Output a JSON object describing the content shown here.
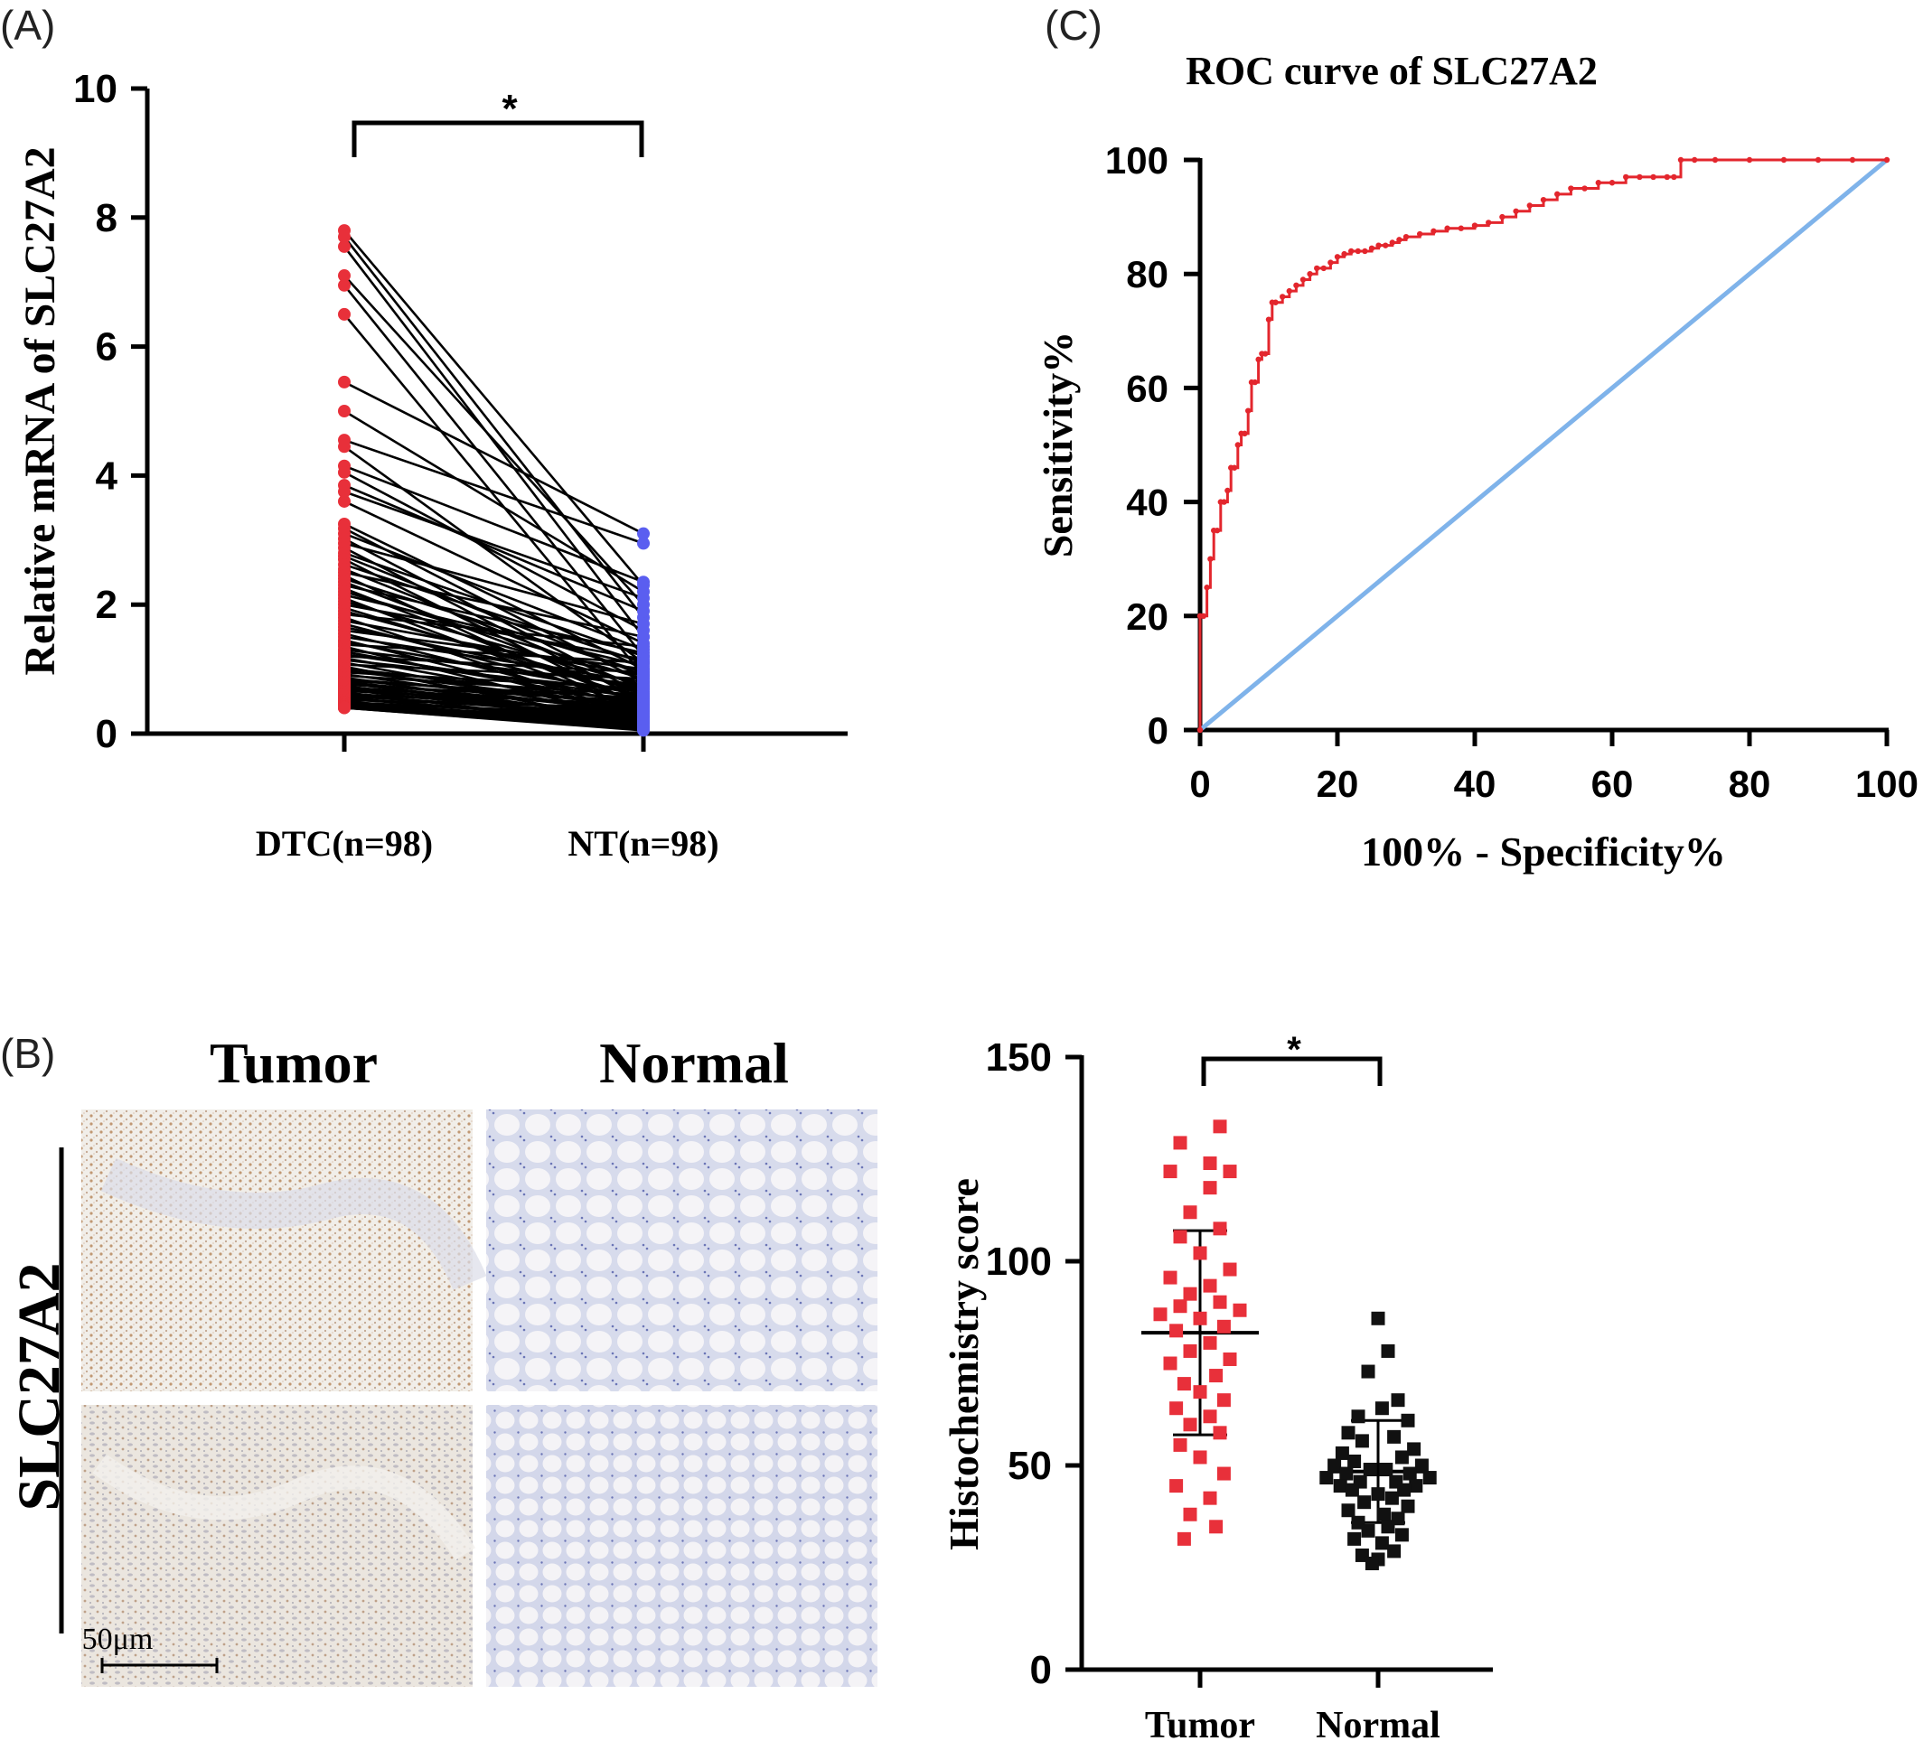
{
  "panels": {
    "a": {
      "letter": "(A)"
    },
    "b": {
      "letter": "(B)"
    },
    "c": {
      "letter": "(C)"
    }
  },
  "histology": {
    "col_labels": [
      "Tumor",
      "Normal"
    ],
    "row_label": "SLC27A2",
    "scale_bar": "50μm"
  },
  "colors": {
    "tumor_red": "#e8303a",
    "normal_blue": "#5a5ef0",
    "roc_red": "#e3262d",
    "diagonal_blue": "#7fb3ea",
    "normal_black": "#111111"
  },
  "chart_data": [
    {
      "id": "paired",
      "type": "scatter",
      "ylabel": "Relative mRNA of SLC27A2",
      "ylim": [
        0,
        10
      ],
      "yticks": [
        "0",
        "2",
        "4",
        "6",
        "8",
        "10"
      ],
      "categories": [
        "DTC(n=98)",
        "NT(n=98)"
      ],
      "significance": "*",
      "series": [
        {
          "name": "DTC(n=98)",
          "values": [
            7.8,
            7.7,
            7.55,
            7.1,
            6.95,
            6.5,
            5.45,
            5.0,
            4.55,
            4.45,
            4.15,
            4.05,
            3.85,
            3.75,
            3.6,
            3.25,
            3.18,
            3.1,
            3.02,
            2.95,
            2.88,
            2.8,
            2.75,
            2.7,
            2.62,
            2.55,
            2.5,
            2.45,
            2.4,
            2.35,
            2.3,
            2.25,
            2.2,
            2.15,
            2.1,
            2.05,
            2.0,
            1.95,
            1.9,
            1.85,
            1.8,
            1.75,
            1.7,
            1.65,
            1.6,
            1.55,
            1.5,
            1.45,
            1.42,
            1.38,
            1.35,
            1.3,
            1.27,
            1.23,
            1.2,
            1.17,
            1.14,
            1.1,
            1.07,
            1.04,
            1.01,
            0.98,
            0.95,
            0.92,
            0.9,
            0.87,
            0.85,
            0.82,
            0.8,
            0.78,
            0.76,
            0.74,
            0.72,
            0.7,
            0.68,
            0.66,
            0.64,
            0.62,
            0.6,
            0.58,
            0.56,
            0.54,
            0.52,
            0.5,
            0.49,
            0.48,
            0.47,
            0.46,
            0.45,
            0.44,
            0.43,
            0.42,
            0.42,
            0.41,
            0.41,
            0.4,
            0.4,
            0.4
          ]
        },
        {
          "name": "NT(n=98)",
          "values": [
            2.3,
            1.8,
            1.5,
            2.0,
            1.2,
            0.9,
            3.1,
            2.2,
            2.95,
            1.1,
            2.35,
            1.6,
            1.9,
            2.1,
            1.4,
            1.0,
            0.8,
            1.3,
            0.6,
            1.7,
            0.5,
            1.2,
            0.9,
            0.4,
            1.1,
            0.7,
            1.5,
            0.3,
            0.95,
            0.6,
            1.25,
            0.45,
            0.85,
            1.05,
            0.35,
            0.75,
            1.15,
            0.55,
            0.65,
            1.35,
            0.25,
            0.9,
            0.5,
            0.7,
            1.0,
            0.4,
            0.8,
            0.3,
            0.6,
            1.1,
            0.2,
            0.75,
            0.45,
            0.55,
            0.95,
            0.35,
            0.65,
            0.25,
            0.85,
            0.15,
            0.5,
            0.4,
            0.7,
            0.3,
            0.6,
            0.2,
            0.45,
            0.55,
            0.35,
            0.25,
            0.5,
            0.15,
            0.4,
            0.3,
            0.2,
            0.45,
            0.1,
            0.35,
            0.25,
            0.3,
            0.15,
            0.2,
            0.4,
            0.1,
            0.25,
            0.15,
            0.3,
            0.2,
            0.1,
            0.18,
            0.12,
            0.22,
            0.08,
            0.15,
            0.1,
            0.12,
            0.06,
            0.05
          ]
        }
      ]
    },
    {
      "id": "roc",
      "type": "line",
      "title": "ROC curve of SLC27A2",
      "xlabel": "100% - Specificity%",
      "ylabel": "Sensitivity%",
      "xlim": [
        0,
        100
      ],
      "ylim": [
        0,
        100
      ],
      "xticks": [
        "0",
        "20",
        "40",
        "60",
        "80",
        "100"
      ],
      "yticks": [
        "0",
        "20",
        "40",
        "60",
        "80",
        "100"
      ],
      "grid": false,
      "series": [
        {
          "name": "ROC",
          "x": [
            0,
            0,
            0.5,
            1,
            1.5,
            2,
            2.5,
            3,
            3.5,
            4,
            4.5,
            5,
            5.5,
            6,
            6.5,
            7,
            7.5,
            8,
            8.5,
            9,
            9.5,
            10,
            10.5,
            11,
            12,
            13,
            14,
            15,
            16,
            17,
            18,
            19,
            20,
            21,
            22,
            23,
            24,
            25,
            26,
            27,
            28,
            29,
            30,
            32,
            34,
            36,
            38,
            40,
            42,
            44,
            46,
            48,
            50,
            52,
            54,
            56,
            58,
            60,
            62,
            64,
            66,
            68,
            69,
            70,
            72,
            75,
            80,
            85,
            90,
            95,
            100
          ],
          "y": [
            0,
            20,
            20,
            25,
            30,
            35,
            35,
            40,
            40,
            42,
            46,
            46,
            50,
            52,
            52,
            56,
            61,
            61,
            65,
            66,
            66,
            72,
            75,
            75,
            76,
            77,
            78,
            79,
            80,
            81,
            81,
            82,
            83,
            83.5,
            84,
            84,
            84,
            84.5,
            85,
            85,
            85.5,
            86,
            86.5,
            87,
            87.5,
            88,
            88,
            88.5,
            89,
            90,
            91,
            92,
            93,
            94,
            95,
            95,
            96,
            96,
            97,
            97,
            97,
            97,
            97,
            100,
            100,
            100,
            100,
            100,
            100,
            100,
            100
          ]
        },
        {
          "name": "Reference",
          "x": [
            0,
            100
          ],
          "y": [
            0,
            100
          ]
        }
      ]
    },
    {
      "id": "score",
      "type": "scatter",
      "ylabel": "Histochemistry score",
      "ylim": [
        0,
        150
      ],
      "yticks": [
        "0",
        "50",
        "100",
        "150"
      ],
      "categories": [
        "Tumor",
        "Normal"
      ],
      "significance": "*",
      "series": [
        {
          "name": "Tumor",
          "mean": 82.5,
          "sd_low": 57.5,
          "sd_high": 107.5,
          "points": [
            [
              0.1,
              133
            ],
            [
              -0.1,
              129
            ],
            [
              0.05,
              124
            ],
            [
              -0.15,
              122
            ],
            [
              0.15,
              122
            ],
            [
              0.05,
              118
            ],
            [
              -0.05,
              112
            ],
            [
              0.1,
              108
            ],
            [
              -0.1,
              106
            ],
            [
              0.0,
              102
            ],
            [
              0.15,
              98
            ],
            [
              -0.15,
              96
            ],
            [
              0.05,
              94
            ],
            [
              -0.05,
              92
            ],
            [
              0.1,
              90
            ],
            [
              -0.1,
              89
            ],
            [
              0.2,
              88
            ],
            [
              -0.2,
              87
            ],
            [
              0.0,
              86
            ],
            [
              0.12,
              84
            ],
            [
              -0.12,
              83
            ],
            [
              0.05,
              80
            ],
            [
              -0.05,
              78
            ],
            [
              0.15,
              76
            ],
            [
              -0.15,
              75
            ],
            [
              0.08,
              72
            ],
            [
              -0.08,
              70
            ],
            [
              0.0,
              68
            ],
            [
              0.12,
              66
            ],
            [
              -0.12,
              64
            ],
            [
              0.05,
              62
            ],
            [
              -0.05,
              60
            ],
            [
              0.1,
              58
            ],
            [
              -0.1,
              55
            ],
            [
              0.0,
              52
            ],
            [
              0.12,
              48
            ],
            [
              -0.12,
              45
            ],
            [
              0.05,
              42
            ],
            [
              -0.05,
              38
            ],
            [
              0.08,
              35
            ],
            [
              -0.08,
              32
            ]
          ]
        },
        {
          "name": "Normal",
          "mean": 48.5,
          "sd_low": 36,
          "sd_high": 61,
          "points": [
            [
              0.0,
              86
            ],
            [
              0.05,
              78
            ],
            [
              -0.05,
              73
            ],
            [
              0.1,
              66
            ],
            [
              0.02,
              64
            ],
            [
              -0.1,
              62
            ],
            [
              0.15,
              61
            ],
            [
              -0.15,
              58
            ],
            [
              0.08,
              57
            ],
            [
              -0.08,
              56
            ],
            [
              0.18,
              54
            ],
            [
              -0.18,
              53
            ],
            [
              0.12,
              52
            ],
            [
              -0.12,
              51
            ],
            [
              0.22,
              50
            ],
            [
              -0.22,
              50
            ],
            [
              0.04,
              49
            ],
            [
              -0.04,
              49
            ],
            [
              0.16,
              48
            ],
            [
              -0.16,
              48
            ],
            [
              0.26,
              47
            ],
            [
              -0.26,
              47
            ],
            [
              0.09,
              46
            ],
            [
              -0.09,
              46
            ],
            [
              0.19,
              45
            ],
            [
              -0.19,
              45
            ],
            [
              0.13,
              44
            ],
            [
              -0.13,
              44
            ],
            [
              0.0,
              43
            ],
            [
              0.07,
              42
            ],
            [
              -0.07,
              41
            ],
            [
              0.15,
              40
            ],
            [
              -0.15,
              39
            ],
            [
              0.03,
              38
            ],
            [
              0.1,
              37
            ],
            [
              -0.1,
              36
            ],
            [
              0.05,
              35
            ],
            [
              -0.05,
              34
            ],
            [
              0.12,
              33
            ],
            [
              -0.12,
              32
            ],
            [
              0.02,
              31
            ],
            [
              0.08,
              29
            ],
            [
              -0.08,
              28
            ],
            [
              0.0,
              27
            ],
            [
              -0.03,
              26
            ]
          ]
        }
      ]
    }
  ]
}
